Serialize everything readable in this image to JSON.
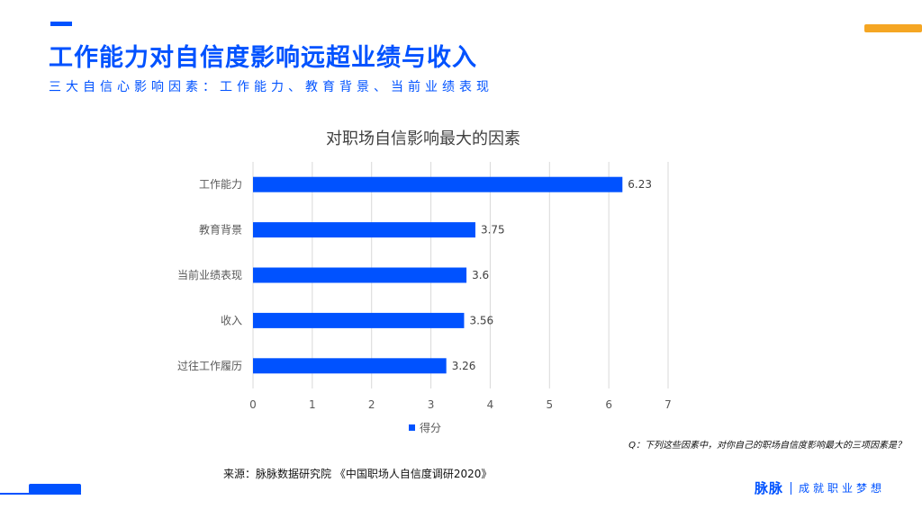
{
  "header": {
    "title": "工作能力对自信度影响远超业绩与收入",
    "subtitle": "三大自信心影响因素：工作能力、教育背景、当前业绩表现"
  },
  "colors": {
    "accent": "#0052ff",
    "orange": "#f5a623"
  },
  "chart_data": {
    "type": "bar",
    "orientation": "horizontal",
    "title": "对职场自信影响最大的因素",
    "categories": [
      "工作能力",
      "教育背景",
      "当前业绩表现",
      "收入",
      "过往工作履历"
    ],
    "series": [
      {
        "name": "得分",
        "values": [
          6.23,
          3.75,
          3.6,
          3.56,
          3.26
        ],
        "labels": [
          "6.23",
          "3.75",
          "3.6",
          "3.56",
          "3.26"
        ]
      }
    ],
    "xlim": [
      0,
      7
    ],
    "xticks": [
      "0",
      "1",
      "2",
      "3",
      "4",
      "5",
      "6",
      "7"
    ],
    "grid": true,
    "legend": "bottom"
  },
  "footer": {
    "question": "Q：下列这些因素中，对你自己的职场自信度影响最大的三项因素是？",
    "source": "来源：脉脉数据研究院 《中国职场人自信度调研2020》",
    "logo": "脉脉",
    "slogan": "成就职业梦想"
  }
}
